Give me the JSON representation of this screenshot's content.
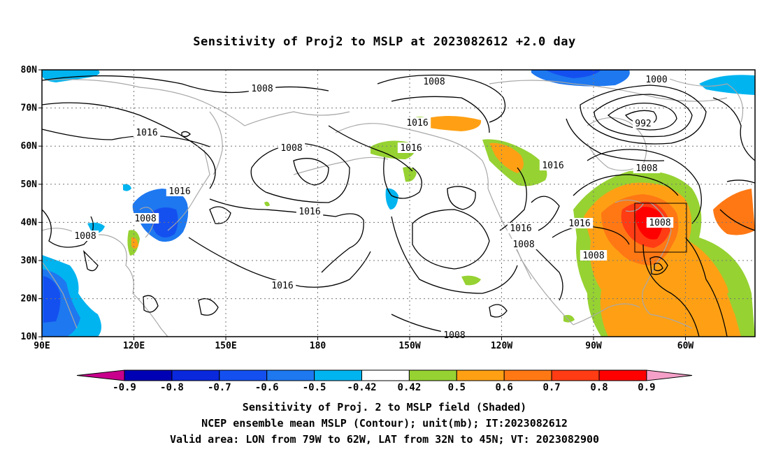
{
  "title": "Sensitivity of Proj2 to MSLP at 2023082612 +2.0 day",
  "map": {
    "lat_labels": [
      "80N",
      "70N",
      "60N",
      "50N",
      "40N",
      "30N",
      "20N",
      "10N"
    ],
    "lon_labels": [
      "90E",
      "120E",
      "150E",
      "180",
      "150W",
      "120W",
      "90W",
      "60W"
    ],
    "isobar_labels": [
      "1008",
      "1008",
      "1016",
      "1008",
      "1016",
      "1016",
      "1016",
      "1008",
      "1016",
      "1016",
      "1008",
      "1000",
      "992",
      "1008",
      "1016",
      "1016",
      "1008",
      "1008",
      "1008",
      "1016",
      "1008"
    ],
    "valid_box": {
      "lon_from": "79W",
      "lon_to": "62W",
      "lat_from": "32N",
      "lat_to": "45N"
    }
  },
  "colorbar": {
    "labels": [
      "-0.9",
      "-0.8",
      "-0.7",
      "-0.6",
      "-0.5",
      "-0.42",
      "0.42",
      "0.5",
      "0.6",
      "0.7",
      "0.8",
      "0.9"
    ],
    "colors": [
      "#c8008c",
      "#0000b4",
      "#0a28dc",
      "#1450f0",
      "#1e78f0",
      "#00b4f0",
      "#ffffff",
      "#96d232",
      "#ffa014",
      "#ff7814",
      "#ff3c14",
      "#ff0000",
      "#f5a0c8"
    ]
  },
  "footer": {
    "line1": "Sensitivity of Proj. 2 to MSLP field (Shaded)",
    "line2": "NCEP ensemble mean MSLP (Contour); unit(mb); IT:2023082612",
    "line3": "Valid area: LON from 79W to 62W, LAT from 32N to 45N; VT: 2023082900"
  }
}
